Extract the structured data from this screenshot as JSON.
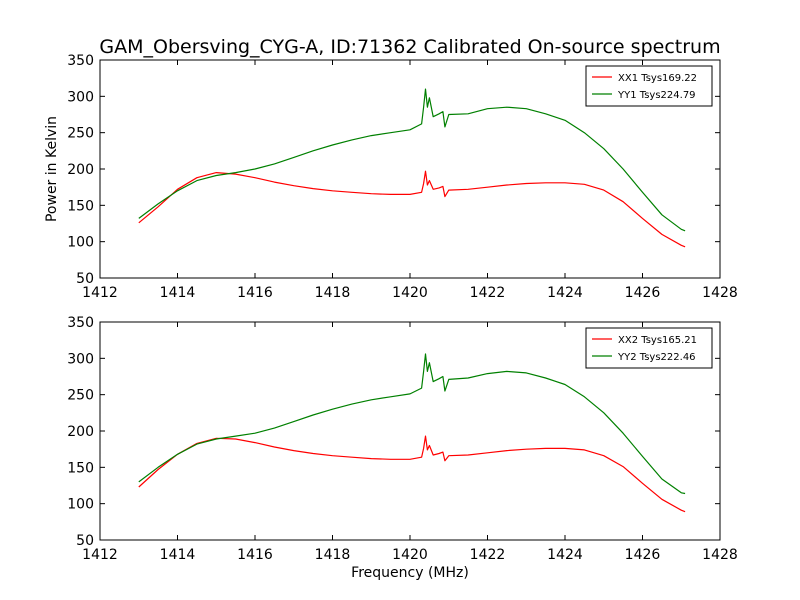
{
  "figure": {
    "title": "GAM_Obersving_CYG-A, ID:71362 Calibrated On-source spectrum"
  },
  "chart_data": [
    {
      "type": "line",
      "title": "GAM_Obersving_CYG-A, ID:71362 Calibrated On-source spectrum",
      "xlabel": "",
      "ylabel": "Power in Kelvin",
      "xlim": [
        1412,
        1428
      ],
      "ylim": [
        50,
        350
      ],
      "xticks": [
        1412,
        1414,
        1416,
        1418,
        1420,
        1422,
        1424,
        1426,
        1428
      ],
      "yticks": [
        50,
        100,
        150,
        200,
        250,
        300,
        350
      ],
      "legend_position": "top-right",
      "grid": false,
      "series": [
        {
          "name": "XX1 Tsys169.22",
          "color": "#ff0000",
          "x": [
            1413.0,
            1413.5,
            1414.0,
            1414.5,
            1415.0,
            1415.5,
            1416.0,
            1416.5,
            1417.0,
            1417.5,
            1418.0,
            1418.5,
            1419.0,
            1419.5,
            1420.0,
            1420.3,
            1420.35,
            1420.4,
            1420.45,
            1420.5,
            1420.6,
            1420.75,
            1420.85,
            1420.9,
            1421.0,
            1421.5,
            1422.0,
            1422.5,
            1423.0,
            1423.5,
            1424.0,
            1424.5,
            1425.0,
            1425.5,
            1426.0,
            1426.5,
            1427.0,
            1427.1
          ],
          "y": [
            126,
            148,
            172,
            188,
            195,
            193,
            188,
            182,
            177,
            173,
            170,
            168,
            166,
            165,
            165,
            168,
            180,
            197,
            178,
            184,
            172,
            174,
            176,
            162,
            171,
            172,
            175,
            178,
            180,
            181,
            181,
            179,
            171,
            155,
            132,
            110,
            95,
            93
          ]
        },
        {
          "name": "YY1 Tsys224.79",
          "color": "#008000",
          "x": [
            1413.0,
            1413.5,
            1414.0,
            1414.5,
            1415.0,
            1415.5,
            1416.0,
            1416.5,
            1417.0,
            1417.5,
            1418.0,
            1418.5,
            1419.0,
            1419.5,
            1420.0,
            1420.3,
            1420.35,
            1420.4,
            1420.45,
            1420.5,
            1420.6,
            1420.75,
            1420.85,
            1420.9,
            1421.0,
            1421.5,
            1422.0,
            1422.5,
            1423.0,
            1423.5,
            1424.0,
            1424.5,
            1425.0,
            1425.5,
            1426.0,
            1426.5,
            1427.0,
            1427.1
          ],
          "y": [
            132,
            152,
            170,
            184,
            191,
            195,
            200,
            207,
            216,
            225,
            233,
            240,
            246,
            250,
            254,
            262,
            285,
            310,
            285,
            298,
            272,
            276,
            279,
            258,
            275,
            276,
            283,
            285,
            283,
            276,
            267,
            250,
            228,
            200,
            168,
            137,
            117,
            115
          ]
        }
      ]
    },
    {
      "type": "line",
      "title": "",
      "xlabel": "Frequency (MHz)",
      "ylabel": "",
      "xlim": [
        1412,
        1428
      ],
      "ylim": [
        50,
        350
      ],
      "xticks": [
        1412,
        1414,
        1416,
        1418,
        1420,
        1422,
        1424,
        1426,
        1428
      ],
      "yticks": [
        50,
        100,
        150,
        200,
        250,
        300,
        350
      ],
      "legend_position": "top-right",
      "grid": false,
      "series": [
        {
          "name": "XX2 Tsys165.21",
          "color": "#ff0000",
          "x": [
            1413.0,
            1413.5,
            1414.0,
            1414.5,
            1415.0,
            1415.5,
            1416.0,
            1416.5,
            1417.0,
            1417.5,
            1418.0,
            1418.5,
            1419.0,
            1419.5,
            1420.0,
            1420.3,
            1420.35,
            1420.4,
            1420.45,
            1420.5,
            1420.6,
            1420.75,
            1420.85,
            1420.9,
            1421.0,
            1421.5,
            1422.0,
            1422.5,
            1423.0,
            1423.5,
            1424.0,
            1424.5,
            1425.0,
            1425.5,
            1426.0,
            1426.5,
            1427.0,
            1427.1
          ],
          "y": [
            123,
            147,
            168,
            183,
            190,
            189,
            184,
            178,
            173,
            169,
            166,
            164,
            162,
            161,
            161,
            164,
            176,
            193,
            174,
            180,
            167,
            169,
            171,
            159,
            166,
            167,
            170,
            173,
            175,
            176,
            176,
            174,
            166,
            151,
            128,
            106,
            91,
            89
          ]
        },
        {
          "name": "YY2 Tsys222.46",
          "color": "#008000",
          "x": [
            1413.0,
            1413.5,
            1414.0,
            1414.5,
            1415.0,
            1415.5,
            1416.0,
            1416.5,
            1417.0,
            1417.5,
            1418.0,
            1418.5,
            1419.0,
            1419.5,
            1420.0,
            1420.3,
            1420.35,
            1420.4,
            1420.45,
            1420.5,
            1420.6,
            1420.75,
            1420.85,
            1420.9,
            1421.0,
            1421.5,
            1422.0,
            1422.5,
            1423.0,
            1423.5,
            1424.0,
            1424.5,
            1425.0,
            1425.5,
            1426.0,
            1426.5,
            1427.0,
            1427.1
          ],
          "y": [
            130,
            150,
            168,
            182,
            189,
            193,
            197,
            204,
            213,
            222,
            230,
            237,
            243,
            247,
            251,
            259,
            282,
            306,
            282,
            294,
            268,
            272,
            275,
            255,
            271,
            273,
            279,
            282,
            280,
            273,
            264,
            247,
            225,
            197,
            165,
            134,
            115,
            114
          ]
        }
      ]
    }
  ]
}
